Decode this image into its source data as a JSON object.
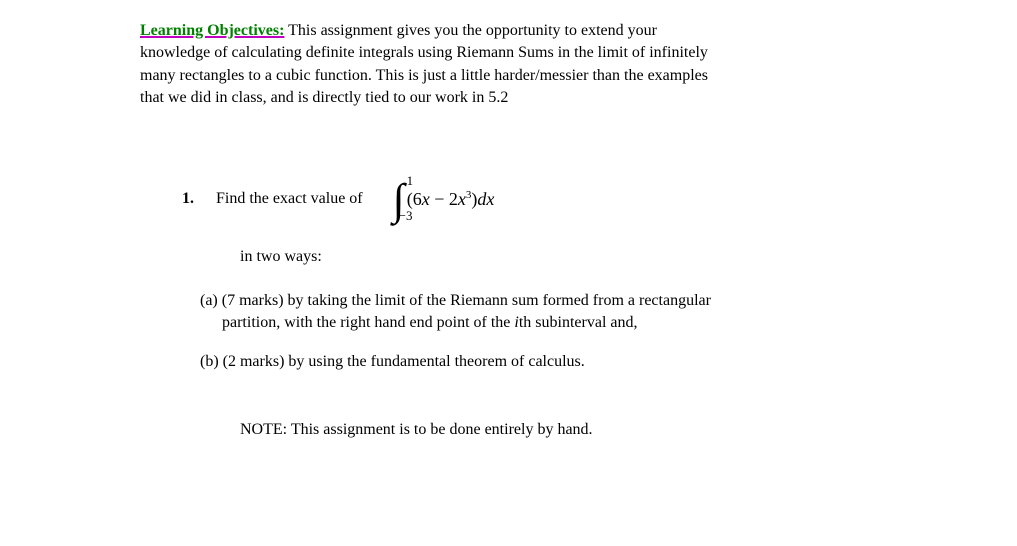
{
  "objectives": {
    "label": "Learning Objectives:",
    "text_line1": "  This assignment gives you the opportunity to extend your",
    "text_line2": "knowledge of calculating definite integrals using Riemann Sums in the limit of infinitely",
    "text_line3": "many rectangles to a cubic function.  This is just a little harder/messier than the examples",
    "text_line4": "that we did in class, and is directly tied to our work in 5.2",
    "label_color": "#008000",
    "underline_color": "#c000c0"
  },
  "question": {
    "number": "1.",
    "prompt": "Find the exact value of",
    "integral": {
      "upper_limit": "1",
      "lower_limit": "−3",
      "coef1": "6",
      "var1": "x",
      "minus": " − ",
      "coef2": "2",
      "var2": "x",
      "power": "3",
      "dx": "dx",
      "open": "(",
      "close": ")"
    },
    "sub_prompt": "in two ways:"
  },
  "parts": {
    "a": {
      "label": "(a) (7 marks) by taking the limit of the Riemann sum formed from a rectangular",
      "cont1_pre": "partition, with the right hand end point of the ",
      "cont1_i": "i",
      "cont1_post": "th subinterval and,"
    },
    "b": {
      "label": "(b) (2 marks) by using the fundamental theorem of calculus."
    }
  },
  "note": "NOTE:  This assignment is to be done entirely by hand."
}
